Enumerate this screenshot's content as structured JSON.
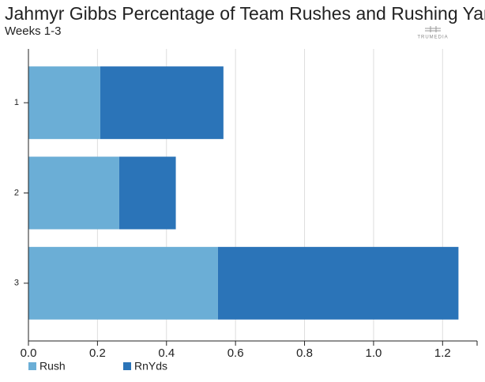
{
  "chart_data": {
    "type": "stacked-barh",
    "title": "Jahmyr Gibbs Percentage of Team Rushes and Rushing Yards",
    "subtitle": "Weeks 1-3",
    "watermark": "TRUMEDIA",
    "categories": [
      "1",
      "2",
      "3"
    ],
    "series": [
      {
        "name": "Rush",
        "color": "#6baed6",
        "values": [
          0.208,
          0.263,
          0.549
        ]
      },
      {
        "name": "RnYds",
        "color": "#2b74b8",
        "values": [
          0.357,
          0.164,
          0.697
        ]
      }
    ],
    "xlim": [
      0,
      1.3
    ],
    "xticks": [
      {
        "value": 0,
        "label": "0.0"
      },
      0.2,
      0.4,
      0.6,
      0.8,
      {
        "value": 1,
        "label": "1.0"
      },
      1.2
    ],
    "grid": true,
    "legend": "bottom-left"
  }
}
